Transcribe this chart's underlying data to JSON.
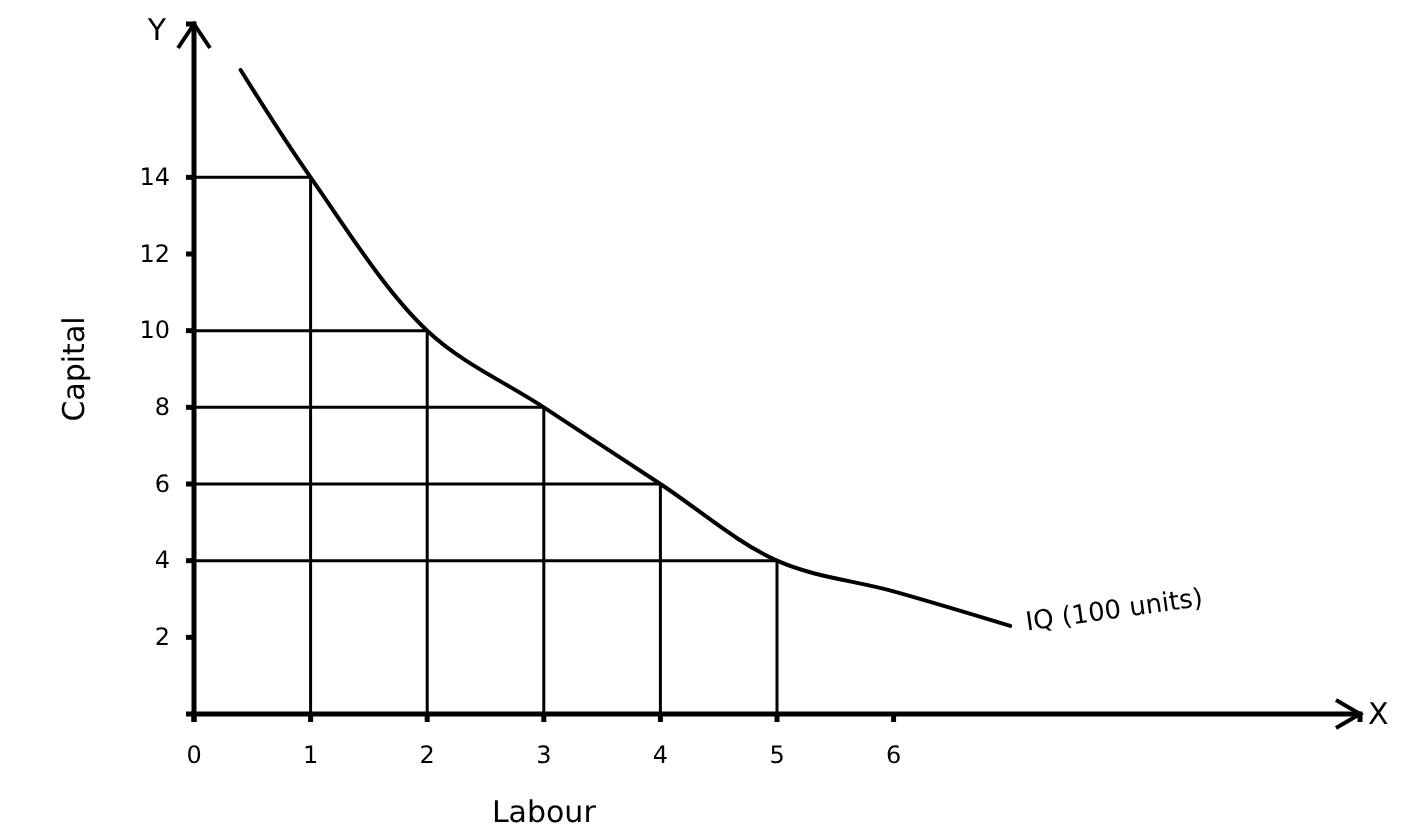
{
  "chart_data": {
    "type": "line",
    "xlabel": "Labour",
    "ylabel": "Capital",
    "xlim": [
      0,
      10
    ],
    "ylim": [
      0,
      18
    ],
    "xticks": [
      0,
      1,
      2,
      3,
      4,
      5,
      6
    ],
    "yticks": [
      2,
      4,
      6,
      8,
      10,
      12,
      14
    ],
    "series": [
      {
        "color": "#000000",
        "x": [
          0.4,
          1,
          2,
          3,
          4,
          5,
          6,
          7
        ],
        "values": [
          16.8,
          14,
          10,
          8,
          6,
          4,
          3.2,
          2.3
        ]
      },
      {
        "color": "#000000",
        "x": [
          0,
          1,
          1
        ],
        "values": [
          14,
          14,
          0
        ]
      },
      {
        "color": "#000000",
        "x": [
          0,
          2,
          2
        ],
        "values": [
          10,
          10,
          0
        ]
      },
      {
        "color": "#000000",
        "x": [
          0,
          3,
          3
        ],
        "values": [
          8,
          8,
          0
        ]
      },
      {
        "color": "#000000",
        "x": [
          0,
          4,
          4
        ],
        "values": [
          6,
          6,
          0
        ]
      },
      {
        "color": "#000000",
        "x": [
          0,
          5,
          5
        ],
        "values": [
          4,
          4,
          0
        ]
      }
    ],
    "annotations": [
      {
        "text": "IQ (100 units)",
        "x": 7,
        "y": 2.3
      },
      "X",
      "Y"
    ],
    "grid": false
  }
}
